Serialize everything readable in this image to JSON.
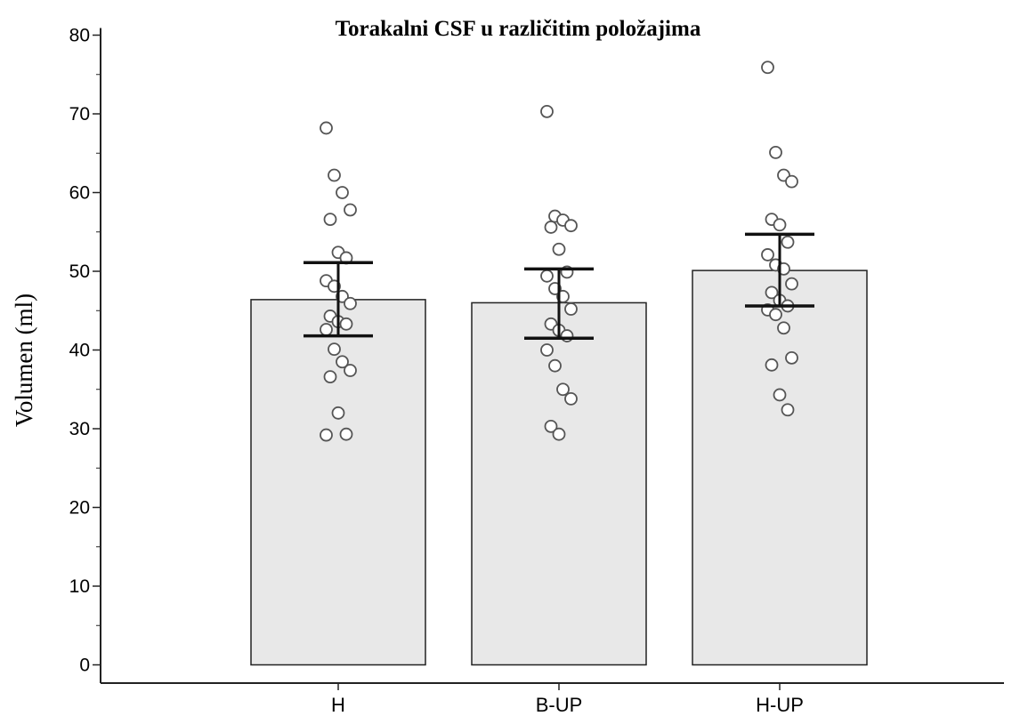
{
  "chart_data": {
    "type": "bar",
    "title": "Torakalni CSF u različitim položajima",
    "xlabel": "",
    "ylabel": "Volumen (ml)",
    "ylim": [
      0,
      80
    ],
    "yticks": [
      0,
      10,
      20,
      30,
      40,
      50,
      60,
      70,
      80
    ],
    "categories": [
      "H",
      "B-UP",
      "H-UP"
    ],
    "values": [
      46.4,
      46.0,
      50.1
    ],
    "error_bars": [
      {
        "low": 41.8,
        "high": 51.1
      },
      {
        "low": 41.5,
        "high": 50.3
      },
      {
        "low": 45.6,
        "high": 54.7
      }
    ],
    "points": [
      [
        68.2,
        62.2,
        60.0,
        57.8,
        56.6,
        52.4,
        51.7,
        48.8,
        48.1,
        46.8,
        45.9,
        44.3,
        43.6,
        43.3,
        42.6,
        40.1,
        38.5,
        37.4,
        36.6,
        32.0,
        29.3,
        29.2
      ],
      [
        70.3,
        57.0,
        56.5,
        55.8,
        55.6,
        52.8,
        49.9,
        49.4,
        47.8,
        46.8,
        45.2,
        43.3,
        42.5,
        41.8,
        40.0,
        38.0,
        35.0,
        33.8,
        30.3,
        29.3
      ],
      [
        75.9,
        65.1,
        62.2,
        61.4,
        56.6,
        55.9,
        53.7,
        52.1,
        50.8,
        50.3,
        48.4,
        47.3,
        46.3,
        45.6,
        45.1,
        44.5,
        42.8,
        39.0,
        38.1,
        34.3,
        32.4
      ]
    ],
    "colors": {
      "bar_fill": "#e8e8e8",
      "bar_stroke": "#222222",
      "point_stroke": "#555555",
      "point_fill": "#ffffff",
      "axis": "#222222"
    },
    "grid": false,
    "legend": "none"
  }
}
